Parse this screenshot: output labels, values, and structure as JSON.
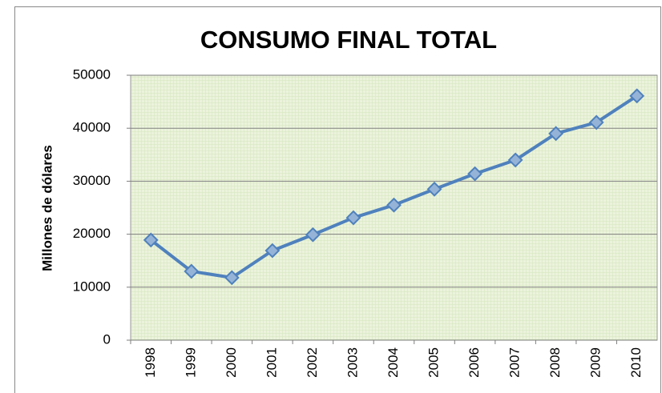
{
  "chart_data": {
    "type": "line",
    "title": "CONSUMO FINAL TOTAL",
    "y_label": "Millones de dólares",
    "categories": [
      "1998",
      "1999",
      "2000",
      "2001",
      "2002",
      "2003",
      "2004",
      "2005",
      "2006",
      "2007",
      "2008",
      "2009",
      "2010"
    ],
    "values": [
      18900,
      13000,
      11800,
      16900,
      19900,
      23100,
      25500,
      28500,
      31400,
      34000,
      39000,
      41100,
      46100
    ],
    "color": "#4f81bd",
    "ylim": [
      0,
      50000
    ],
    "yticks": [
      0,
      10000,
      20000,
      30000,
      40000,
      50000
    ],
    "grid": true
  }
}
